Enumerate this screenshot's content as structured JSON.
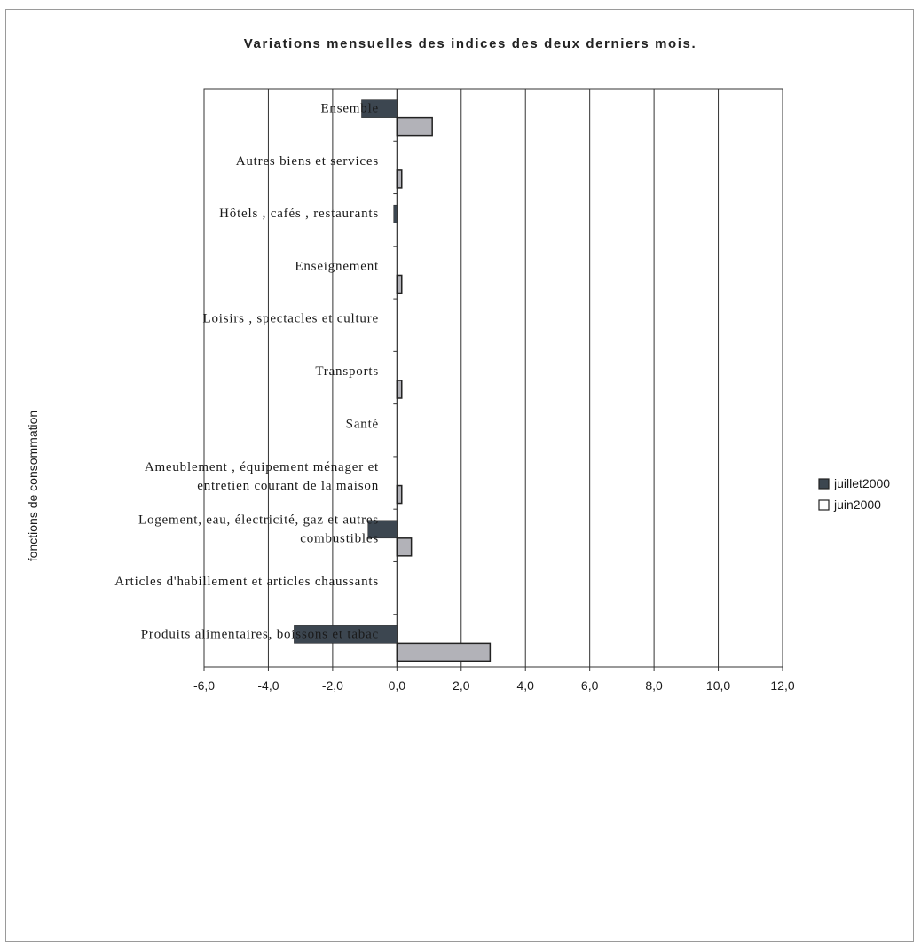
{
  "chart_data": {
    "type": "bar",
    "orientation": "horizontal",
    "title": "Variations mensuelles des indices des deux derniers mois.",
    "ylabel": "fonctions de consommation",
    "xlabel": "",
    "xlim": [
      -6,
      12
    ],
    "xticks": [
      "-6,0",
      "-4,0",
      "-2,0",
      "0,0",
      "2,0",
      "4,0",
      "6,0",
      "8,0",
      "10,0",
      "12,0"
    ],
    "grid": "vertical",
    "legend_position": "right",
    "categories": [
      [
        "Ensemble"
      ],
      [
        "Autres biens et services"
      ],
      [
        "Hôtels , cafés , restaurants"
      ],
      [
        "Enseignement"
      ],
      [
        "Loisirs , spectacles et culture"
      ],
      [
        "Transports"
      ],
      [
        "Santé"
      ],
      [
        "Ameublement , équipement ménager et",
        "entretien courant de la maison"
      ],
      [
        "Logement, eau, électricité, gaz et autres",
        "combustibles"
      ],
      [
        "Articles d'habillement et articles chaussants"
      ],
      [
        "Produits alimentaires, boissons et tabac"
      ]
    ],
    "series": [
      {
        "name": "juillet2000",
        "color": "#3c4650",
        "values": [
          -1.1,
          0.0,
          -0.1,
          0.0,
          0.0,
          0.0,
          0.0,
          0.0,
          -0.9,
          0.0,
          -3.2
        ]
      },
      {
        "name": "juin2000",
        "color": "#b2b2b8",
        "values": [
          1.1,
          0.15,
          0.0,
          0.15,
          0.0,
          0.15,
          0.0,
          0.15,
          0.45,
          0.0,
          2.9
        ]
      }
    ]
  }
}
